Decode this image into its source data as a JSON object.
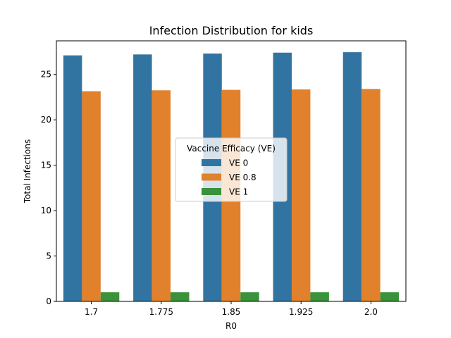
{
  "chart_data": {
    "type": "bar",
    "title": "Infection Distribution for kids",
    "xlabel": "R0",
    "ylabel": "Total Infections",
    "categories": [
      "1.7",
      "1.775",
      "1.85",
      "1.925",
      "2.0"
    ],
    "ylim": [
      0,
      28.7
    ],
    "yticks": [
      0,
      5,
      10,
      15,
      20,
      25
    ],
    "grid": false,
    "legend": {
      "title": "Vaccine Efficacy (VE)",
      "placement": "center"
    },
    "series": [
      {
        "name": "VE 0",
        "color": "#3274a1",
        "values": [
          27.1,
          27.2,
          27.3,
          27.4,
          27.45
        ]
      },
      {
        "name": "VE 0.8",
        "color": "#e1812c",
        "values": [
          23.15,
          23.25,
          23.3,
          23.35,
          23.4
        ]
      },
      {
        "name": "VE 1",
        "color": "#3a923a",
        "values": [
          1.0,
          1.0,
          1.0,
          1.0,
          1.0
        ]
      }
    ]
  }
}
